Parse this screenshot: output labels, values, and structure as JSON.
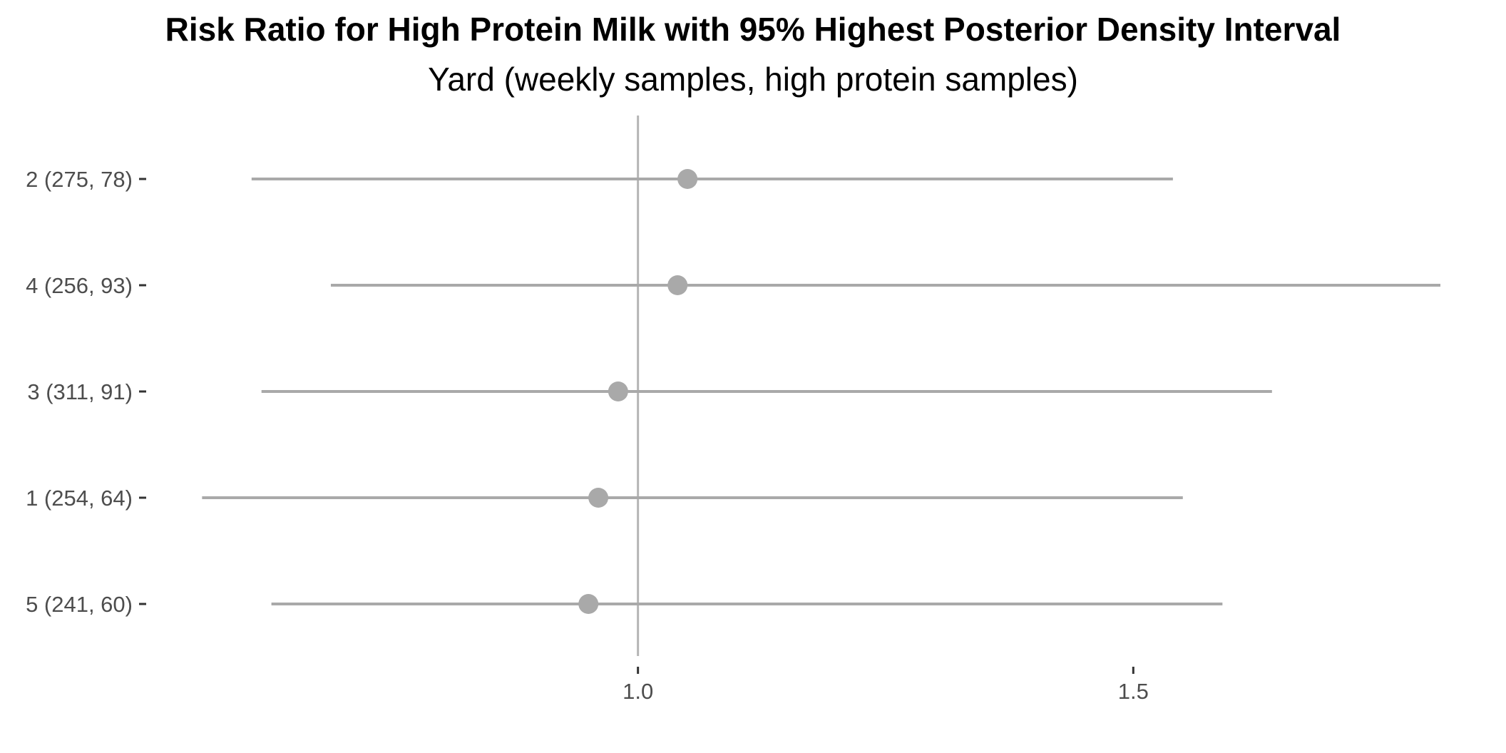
{
  "chart_data": {
    "type": "forest",
    "title": "Risk Ratio for High Protein Milk with 95% Highest Posterior Density Interval",
    "subtitle": "Yard (weekly samples, high protein samples)",
    "xlabel": "",
    "ylabel": "",
    "xlim": [
      0.5,
      1.81
    ],
    "x_ticks": [
      1.0,
      1.5
    ],
    "x_tick_labels": [
      "1.0",
      "1.5"
    ],
    "reference_line": 1.0,
    "grid": false,
    "colors": {
      "points": "#a9a9a9",
      "intervals": "#a9a9a9",
      "reference_line": "#b5b5b5",
      "tick_marks": "#333333"
    },
    "rows": [
      {
        "label": "2 (275, 78)",
        "estimate": 1.05,
        "lower": 0.61,
        "upper": 1.54
      },
      {
        "label": "4 (256, 93)",
        "estimate": 1.04,
        "lower": 0.69,
        "upper": 1.81
      },
      {
        "label": "3 (311, 91)",
        "estimate": 0.98,
        "lower": 0.62,
        "upper": 1.64
      },
      {
        "label": "1 (254, 64)",
        "estimate": 0.96,
        "lower": 0.56,
        "upper": 1.55
      },
      {
        "label": "5 (241, 60)",
        "estimate": 0.95,
        "lower": 0.63,
        "upper": 1.59
      }
    ]
  }
}
